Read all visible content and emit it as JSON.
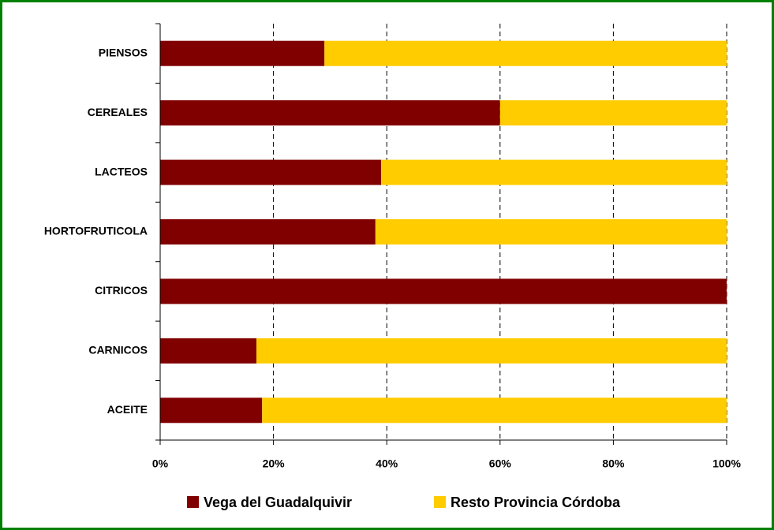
{
  "chart_data": {
    "type": "stacked-bar-horizontal",
    "categories": [
      "PIENSOS",
      "CEREALES",
      "LACTEOS",
      "HORTOFRUTICOLA",
      "CITRICOS",
      "CARNICOS",
      "ACEITE"
    ],
    "series": [
      {
        "name": "Vega del Guadalquivir",
        "color": "#800000",
        "values": [
          29,
          60,
          39,
          38,
          100,
          17,
          18
        ]
      },
      {
        "name": "Resto Provincia Córdoba",
        "color": "#ffcc00",
        "values": [
          71,
          40,
          61,
          62,
          0,
          83,
          82
        ]
      }
    ],
    "xlim": [
      0,
      100
    ],
    "xticks": [
      {
        "value": 0,
        "label": "0%"
      },
      {
        "value": 20,
        "label": "20%"
      },
      {
        "value": 40,
        "label": "40%"
      },
      {
        "value": 60,
        "label": "60%"
      },
      {
        "value": 80,
        "label": "80%"
      },
      {
        "value": 100,
        "label": "100%"
      }
    ],
    "grid": true,
    "legend": "bottom"
  }
}
